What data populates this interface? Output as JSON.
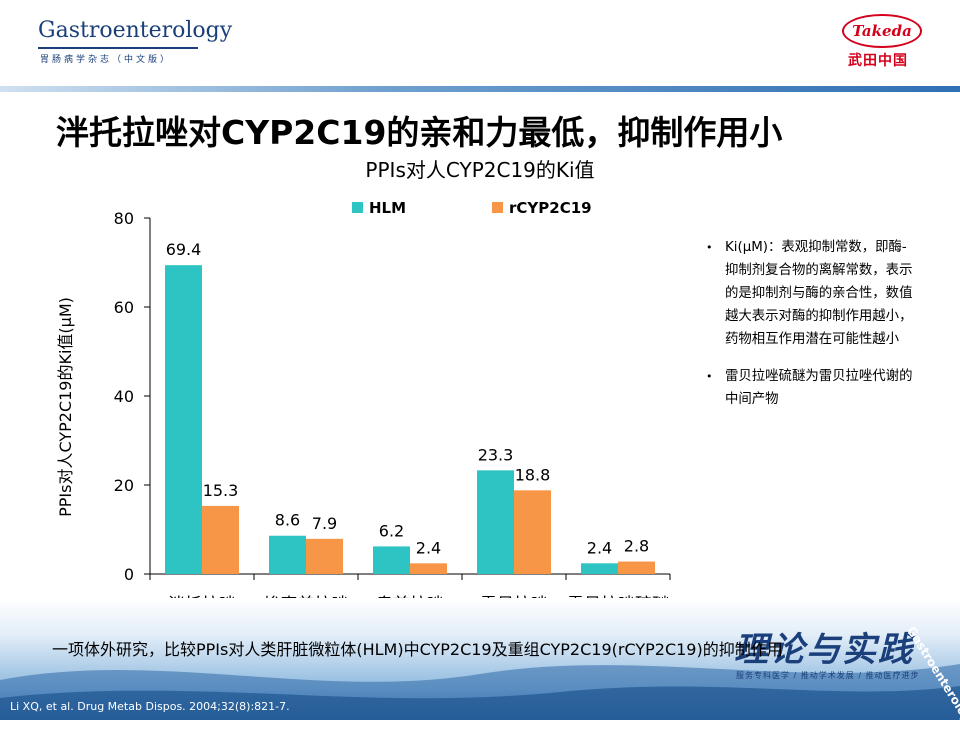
{
  "header": {
    "journal_name": "Gastroenterology",
    "journal_subtitle": "胃肠病学杂志（中文版）",
    "sponsor_logo_text": "Takeda",
    "sponsor_cn": "武田中国"
  },
  "slide": {
    "title": "泮托拉唑对CYP2C19的亲和力最低，抑制作用小",
    "summary": "一项体外研究，比较PPIs对人类肝脏微粒体(HLM)中CYP2C19及重组CYP2C19(rCYP2C19)的抑制作用",
    "citation": "Li XQ, et al. Drug Metab Dispos. 2004;32(8):821-7.",
    "banner_text": "理论与实践",
    "banner_sub": "服务专科医学 / 推动学术发展 / 推动医疗进步",
    "banner_tag": "Gastroenterology"
  },
  "notes": [
    "Ki(μM)：表观抑制常数，即酶-抑制剂复合物的离解常数，表示的是抑制剂与酶的亲合性，数值越大表示对酶的抑制作用越小，药物相互作用潜在可能性越小",
    "雷贝拉唑硫醚为雷贝拉唑代谢的中间产物"
  ],
  "chart_data": {
    "type": "bar",
    "title": "PPIs对人CYP2C19的Ki值",
    "xlabel": "",
    "ylabel": "PPIs对人CYP2C19的Ki值(μM)",
    "ylim": [
      0,
      80
    ],
    "yticks": [
      0,
      20,
      40,
      60,
      80
    ],
    "grid": false,
    "legend_position": "top",
    "categories": [
      "泮托拉唑",
      "埃索美拉唑",
      "奥美拉唑",
      "雷贝拉唑",
      "雷贝拉唑硫醚"
    ],
    "series": [
      {
        "name": "HLM",
        "color": "#2ec4c4",
        "values": [
          69.4,
          8.6,
          6.2,
          23.3,
          2.4
        ]
      },
      {
        "name": "rCYP2C19",
        "color": "#f79646",
        "values": [
          15.3,
          7.9,
          2.4,
          18.8,
          2.8
        ]
      }
    ]
  }
}
